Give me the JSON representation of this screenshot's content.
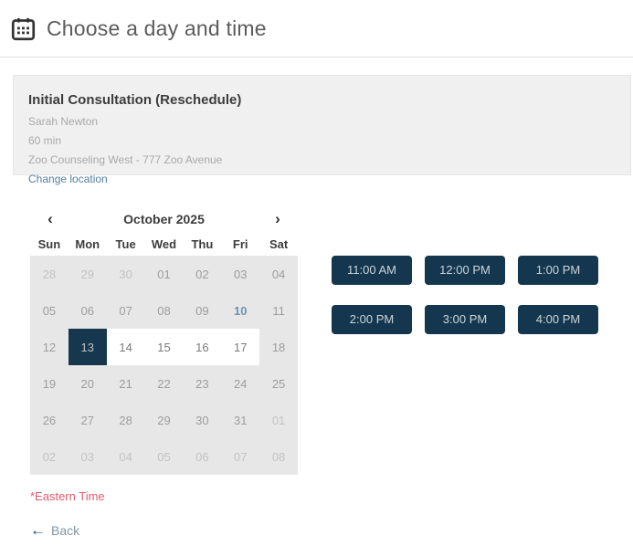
{
  "header": {
    "title": "Choose a day and time"
  },
  "appointment": {
    "title": "Initial Consultation (Reschedule)",
    "practitioner": "Sarah Newton",
    "duration": "60 min",
    "location": "Zoo Counseling West - 777 Zoo Avenue",
    "change_location_label": "Change location"
  },
  "calendar": {
    "month_label": "October 2025",
    "prev_glyph": "‹",
    "next_glyph": "›",
    "weekdays": [
      "Sun",
      "Mon",
      "Tue",
      "Wed",
      "Thu",
      "Fri",
      "Sat"
    ],
    "days": [
      {
        "label": "28",
        "state": "adjacent"
      },
      {
        "label": "29",
        "state": "adjacent"
      },
      {
        "label": "30",
        "state": "adjacent"
      },
      {
        "label": "01",
        "state": "disabled"
      },
      {
        "label": "02",
        "state": "disabled"
      },
      {
        "label": "03",
        "state": "disabled"
      },
      {
        "label": "04",
        "state": "disabled"
      },
      {
        "label": "05",
        "state": "disabled"
      },
      {
        "label": "06",
        "state": "disabled"
      },
      {
        "label": "07",
        "state": "disabled"
      },
      {
        "label": "08",
        "state": "disabled"
      },
      {
        "label": "09",
        "state": "disabled"
      },
      {
        "label": "10",
        "state": "today"
      },
      {
        "label": "11",
        "state": "disabled"
      },
      {
        "label": "12",
        "state": "disabled"
      },
      {
        "label": "13",
        "state": "selected"
      },
      {
        "label": "14",
        "state": "available"
      },
      {
        "label": "15",
        "state": "available"
      },
      {
        "label": "16",
        "state": "available"
      },
      {
        "label": "17",
        "state": "available"
      },
      {
        "label": "18",
        "state": "disabled"
      },
      {
        "label": "19",
        "state": "disabled"
      },
      {
        "label": "20",
        "state": "disabled"
      },
      {
        "label": "21",
        "state": "disabled"
      },
      {
        "label": "22",
        "state": "disabled"
      },
      {
        "label": "23",
        "state": "disabled"
      },
      {
        "label": "24",
        "state": "disabled"
      },
      {
        "label": "25",
        "state": "disabled"
      },
      {
        "label": "26",
        "state": "disabled"
      },
      {
        "label": "27",
        "state": "disabled"
      },
      {
        "label": "28",
        "state": "disabled"
      },
      {
        "label": "29",
        "state": "disabled"
      },
      {
        "label": "30",
        "state": "disabled"
      },
      {
        "label": "31",
        "state": "disabled"
      },
      {
        "label": "01",
        "state": "adjacent"
      },
      {
        "label": "02",
        "state": "adjacent"
      },
      {
        "label": "03",
        "state": "adjacent"
      },
      {
        "label": "04",
        "state": "adjacent"
      },
      {
        "label": "05",
        "state": "adjacent"
      },
      {
        "label": "06",
        "state": "adjacent"
      },
      {
        "label": "07",
        "state": "adjacent"
      },
      {
        "label": "08",
        "state": "adjacent"
      }
    ]
  },
  "times": {
    "slots": [
      "11:00 AM",
      "12:00 PM",
      "1:00 PM",
      "2:00 PM",
      "3:00 PM",
      "4:00 PM"
    ]
  },
  "footer": {
    "timezone_note": "*Eastern Time",
    "back_arrow_glyph": "←",
    "back_label": "Back"
  },
  "colors": {
    "accent_navy": "#17374e",
    "time_button_navy": "#14374f",
    "today_blue": "#6e94ad",
    "link_blue": "#527ea0",
    "timezone_red": "#e05c6c",
    "grid_gray": "#e7e7e7",
    "info_box_gray": "#f0f0f0"
  }
}
